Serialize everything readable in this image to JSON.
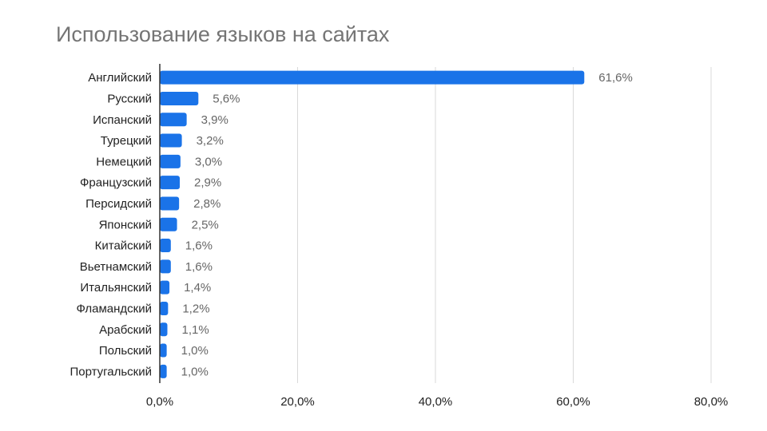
{
  "chart_data": {
    "type": "bar",
    "orientation": "horizontal",
    "title": "Использование языков на сайтах",
    "categories": [
      "Английский",
      "Русский",
      "Испанский",
      "Турецкий",
      "Немецкий",
      "Французский",
      "Персидский",
      "Японский",
      "Китайский",
      "Вьетнамский",
      "Итальянский",
      "Фламандский",
      "Арабский",
      "Польский",
      "Португальский"
    ],
    "values": [
      61.6,
      5.6,
      3.9,
      3.2,
      3.0,
      2.9,
      2.8,
      2.5,
      1.6,
      1.6,
      1.4,
      1.2,
      1.1,
      1.0,
      1.0
    ],
    "value_labels": [
      "61,6%",
      "5,6%",
      "3,9%",
      "3,2%",
      "3,0%",
      "2,9%",
      "2,8%",
      "2,5%",
      "1,6%",
      "1,6%",
      "1,4%",
      "1,2%",
      "1,1%",
      "1,0%",
      "1,0%"
    ],
    "xlim": [
      0,
      80
    ],
    "xticks": [
      0,
      20,
      40,
      60,
      80
    ],
    "xtick_labels": [
      "0,0%",
      "20,0%",
      "40,0%",
      "60,0%",
      "80,0%"
    ],
    "grid": "vertical",
    "legend": "none",
    "bar_color": "#1a73e8",
    "grid_color": "#d9d9d9",
    "axis_color": "#333333"
  }
}
